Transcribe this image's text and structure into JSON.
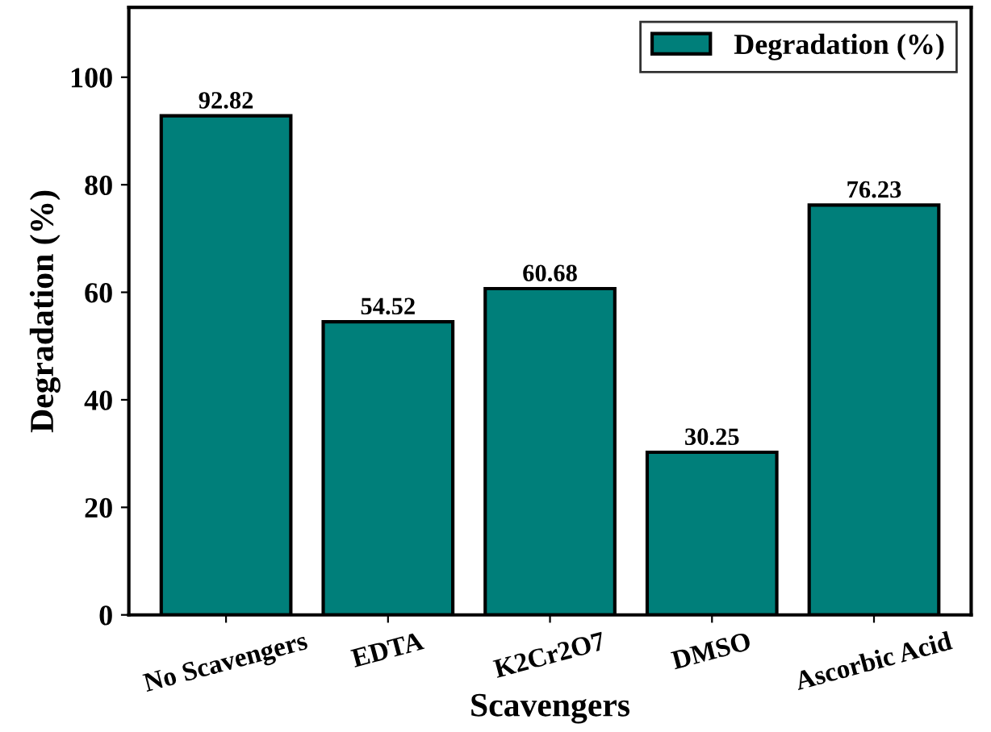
{
  "chart_data": {
    "type": "bar",
    "xlabel": "Scavengers",
    "ylabel": "Degradation (%)",
    "categories": [
      "No Scavengers",
      "EDTA",
      "K2Cr2O7",
      "DMSO",
      "Ascorbic Acid"
    ],
    "series": [
      {
        "name": "Degradation (%)",
        "color": "#007f7a",
        "values": [
          92.82,
          54.52,
          60.68,
          30.25,
          76.23
        ]
      }
    ],
    "ylim": [
      0,
      113
    ],
    "yticks": [
      0,
      20,
      40,
      60,
      80,
      100
    ],
    "data_labels": true,
    "legend": "top right",
    "grid": false
  }
}
